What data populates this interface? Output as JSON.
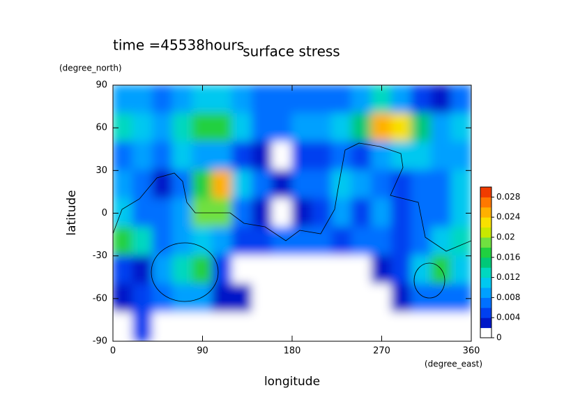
{
  "chart_data": {
    "type": "contour",
    "title": "surface stress",
    "subtitle": "time =45538hours",
    "xlabel": "longitude",
    "ylabel": "latitude",
    "xunit": "(degree_east)",
    "yunit": "(degree_north)",
    "x": [
      10,
      30,
      50,
      70,
      90,
      110,
      130,
      150,
      170,
      190,
      210,
      230,
      250,
      270,
      290,
      310,
      330,
      350
    ],
    "y": [
      80,
      60,
      40,
      20,
      0,
      -20,
      -40,
      -60,
      -80
    ],
    "z": [
      [
        0.008,
        0.008,
        0.006,
        0.008,
        0.01,
        0.01,
        0.008,
        0.006,
        0.006,
        0.006,
        0.006,
        0.006,
        0.008,
        0.012,
        0.008,
        0.004,
        0.002,
        0.006
      ],
      [
        0.012,
        0.01,
        0.008,
        0.012,
        0.016,
        0.016,
        0.01,
        0.006,
        0.006,
        0.008,
        0.008,
        0.01,
        0.014,
        0.024,
        0.022,
        0.014,
        0.008,
        0.01
      ],
      [
        0.006,
        0.008,
        0.006,
        0.01,
        0.008,
        0.008,
        0.004,
        0.002,
        0,
        0.004,
        0.004,
        0.006,
        0.004,
        0.008,
        0.01,
        0.01,
        0.008,
        0.008
      ],
      [
        0.008,
        0.006,
        0.002,
        0.006,
        0.016,
        0.024,
        0.01,
        0.006,
        0.002,
        0.006,
        0.006,
        0.01,
        0.008,
        0.006,
        0.004,
        0.006,
        0.006,
        0.01
      ],
      [
        0.01,
        0.006,
        0.006,
        0.008,
        0.018,
        0.018,
        0.006,
        0.002,
        0,
        0.002,
        0.004,
        0.008,
        0.004,
        0.008,
        0.004,
        0.006,
        0.006,
        0.01
      ],
      [
        0.016,
        0.012,
        0.006,
        0.008,
        0.01,
        0.008,
        0.004,
        0.004,
        0.006,
        0.006,
        0.006,
        0.004,
        0.006,
        0.006,
        0.004,
        0.006,
        0.01,
        0.012
      ],
      [
        0.004,
        0.002,
        0.008,
        0.012,
        0.016,
        0.004,
        0,
        0,
        0,
        0,
        0,
        0,
        0,
        0.002,
        0.004,
        0.01,
        0.016,
        0.01
      ],
      [
        0.002,
        0.004,
        0.006,
        0.008,
        0.008,
        0.002,
        0.002,
        0,
        0,
        0,
        0,
        0,
        0,
        0,
        0.002,
        0.006,
        0.006,
        0.006
      ],
      [
        0,
        0.004,
        0,
        0,
        0,
        0,
        0,
        0,
        0,
        0,
        0,
        0,
        0,
        0,
        0,
        0,
        0,
        0
      ]
    ],
    "xlim": [
      0,
      360
    ],
    "ylim": [
      -90,
      90
    ],
    "xticks": [
      0,
      90,
      180,
      270,
      360
    ],
    "yticks": [
      -90,
      -60,
      -30,
      0,
      30,
      60,
      90
    ],
    "clim": [
      0,
      0.03
    ],
    "cticks": [
      0,
      0.004,
      0.008,
      0.012,
      0.016,
      0.02,
      0.024,
      0.028
    ],
    "colors": [
      "#ffffff",
      "#0018c8",
      "#0040f0",
      "#0070ff",
      "#00a0ff",
      "#00c8f0",
      "#00d8c0",
      "#00c878",
      "#20d040",
      "#70e040",
      "#c8e800",
      "#f8e000",
      "#ffb000",
      "#ff7800",
      "#f03c00"
    ]
  }
}
